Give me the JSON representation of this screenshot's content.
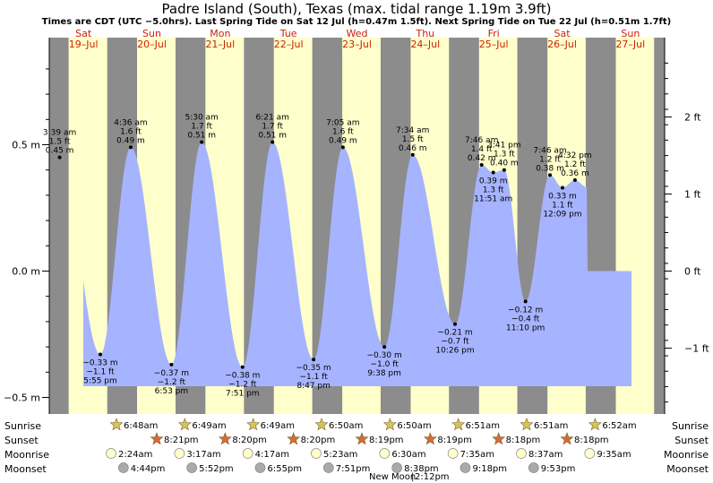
{
  "chart_data": {
    "type": "area",
    "title": "Padre Island (South), Texas (max. tidal range 1.19m 3.9ft)",
    "subtitle": "Times are CDT (UTC −5.0hrs). Last Spring Tide on Sat 12 Jul (h=0.47m 1.5ft). Next Spring Tide on Tue 22 Jul (h=0.51m 1.7ft)",
    "x_start": "2025-07-19T00:00",
    "x_end": "2025-07-28T00:00",
    "ylim": [
      -0.55,
      0.83
    ],
    "y_ticks_m": [
      {
        "v": 0.5,
        "label": "0.5 m"
      },
      {
        "v": 0.0,
        "label": "0.0 m"
      },
      {
        "v": -0.5,
        "label": "−0.5 m"
      }
    ],
    "y_ticks_ft": [
      {
        "v": 2,
        "label": "2 ft"
      },
      {
        "v": 1,
        "label": "1 ft"
      },
      {
        "v": 0,
        "label": "0 ft"
      },
      {
        "v": -1,
        "label": "−1 ft"
      }
    ],
    "days": [
      {
        "day": "Sat",
        "date": "19–Jul",
        "sunrise": "6:48am",
        "sunset": "8:21pm",
        "moonrise": "2:24am",
        "moonset": "4:44pm"
      },
      {
        "day": "Sun",
        "date": "20–Jul",
        "sunrise": "6:49am",
        "sunset": "8:20pm",
        "moonrise": "3:17am",
        "moonset": "5:52pm"
      },
      {
        "day": "Mon",
        "date": "21–Jul",
        "sunrise": "6:49am",
        "sunset": "8:20pm",
        "moonrise": "4:17am",
        "moonset": "6:55pm"
      },
      {
        "day": "Tue",
        "date": "22–Jul",
        "sunrise": "6:50am",
        "sunset": "8:19pm",
        "moonrise": "5:23am",
        "moonset": "7:51pm"
      },
      {
        "day": "Wed",
        "date": "23–Jul",
        "sunrise": "6:50am",
        "sunset": "8:19pm",
        "moonrise": "6:30am",
        "moonset": "8:38pm"
      },
      {
        "day": "Thu",
        "date": "24–Jul",
        "sunrise": "6:51am",
        "sunset": "8:18pm",
        "moonrise": "7:35am",
        "moonset": "9:18pm"
      },
      {
        "day": "Fri",
        "date": "25–Jul",
        "sunrise": "6:51am",
        "sunset": "8:18pm",
        "moonrise": "8:37am",
        "moonset": "9:53pm"
      },
      {
        "day": "Sat",
        "date": "26–Jul",
        "sunrise": "6:52am",
        "sunset": "",
        "moonrise": "9:35am",
        "moonset": ""
      },
      {
        "day": "Sun",
        "date": "27–Jul",
        "sunrise": "",
        "sunset": "",
        "moonrise": "",
        "moonset": ""
      }
    ],
    "tides": [
      {
        "t": "2025-07-19T03:39",
        "m": 0.45,
        "labels": [
          "3:39 am",
          "1.5 ft",
          "0.45 m"
        ],
        "kind": "high"
      },
      {
        "t": "2025-07-19T17:55",
        "m": -0.33,
        "labels": [
          "−0.33 m",
          "−1.1 ft",
          "5:55 pm"
        ],
        "kind": "low"
      },
      {
        "t": "2025-07-20T04:36",
        "m": 0.49,
        "labels": [
          "4:36 am",
          "1.6 ft",
          "0.49 m"
        ],
        "kind": "high"
      },
      {
        "t": "2025-07-20T18:53",
        "m": -0.37,
        "labels": [
          "−0.37 m",
          "−1.2 ft",
          "6:53 pm"
        ],
        "kind": "low"
      },
      {
        "t": "2025-07-21T05:30",
        "m": 0.51,
        "labels": [
          "5:30 am",
          "1.7 ft",
          "0.51 m"
        ],
        "kind": "high"
      },
      {
        "t": "2025-07-21T19:51",
        "m": -0.38,
        "labels": [
          "−0.38 m",
          "−1.2 ft",
          "7:51 pm"
        ],
        "kind": "low"
      },
      {
        "t": "2025-07-22T06:21",
        "m": 0.51,
        "labels": [
          "6:21 am",
          "1.7 ft",
          "0.51 m"
        ],
        "kind": "high"
      },
      {
        "t": "2025-07-22T20:47",
        "m": -0.35,
        "labels": [
          "−0.35 m",
          "−1.1 ft",
          "8:47 pm"
        ],
        "kind": "low"
      },
      {
        "t": "2025-07-23T07:05",
        "m": 0.49,
        "labels": [
          "7:05 am",
          "1.6 ft",
          "0.49 m"
        ],
        "kind": "high"
      },
      {
        "t": "2025-07-23T21:38",
        "m": -0.3,
        "labels": [
          "−0.30 m",
          "−1.0 ft",
          "9:38 pm"
        ],
        "kind": "low"
      },
      {
        "t": "2025-07-24T07:34",
        "m": 0.46,
        "labels": [
          "7:34 am",
          "1.5 ft",
          "0.46 m"
        ],
        "kind": "high"
      },
      {
        "t": "2025-07-24T22:26",
        "m": -0.21,
        "labels": [
          "−0.21 m",
          "−0.7 ft",
          "10:26 pm"
        ],
        "kind": "low"
      },
      {
        "t": "2025-07-25T07:46",
        "m": 0.42,
        "labels": [
          "7:46 am",
          "1.4 ft",
          "0.42 m"
        ],
        "kind": "high"
      },
      {
        "t": "2025-07-25T11:51",
        "m": 0.39,
        "labels": [
          "0.39 m",
          "1.3 ft",
          "11:51 am"
        ],
        "kind": "low"
      },
      {
        "t": "2025-07-25T15:41",
        "m": 0.4,
        "labels": [
          "3:41 pm",
          "1.3 ft",
          "0.40 m"
        ],
        "kind": "high"
      },
      {
        "t": "2025-07-25T23:10",
        "m": -0.12,
        "labels": [
          "−0.12 m",
          "−0.4 ft",
          "11:10 pm"
        ],
        "kind": "low"
      },
      {
        "t": "2025-07-26T07:46",
        "m": 0.38,
        "labels": [
          "7:46 am",
          "1.2 ft",
          "0.38 m"
        ],
        "kind": "high"
      },
      {
        "t": "2025-07-26T12:09",
        "m": 0.33,
        "labels": [
          "0.33 m",
          "1.1 ft",
          "12:09 pm"
        ],
        "kind": "low"
      },
      {
        "t": "2025-07-26T16:32",
        "m": 0.36,
        "labels": [
          "4:32 pm",
          "1.2 ft",
          "0.36 m"
        ],
        "kind": "high"
      }
    ],
    "night_color": "#8c8c8c",
    "day_color": "#ffffcc",
    "water_color": "#a6b4ff",
    "grid": false
  },
  "rows": {
    "sunrise": "Sunrise",
    "sunset": "Sunset",
    "moonrise": "Moonrise",
    "moonset": "Moonset"
  },
  "new_moon": {
    "label": "New Moon",
    "time": "2:12pm"
  },
  "icons": {
    "sunrise": "sunrise-star-icon",
    "sunset": "sunset-star-icon",
    "moonrise": "moonrise-circle-icon",
    "moonset": "moonset-circle-icon"
  }
}
